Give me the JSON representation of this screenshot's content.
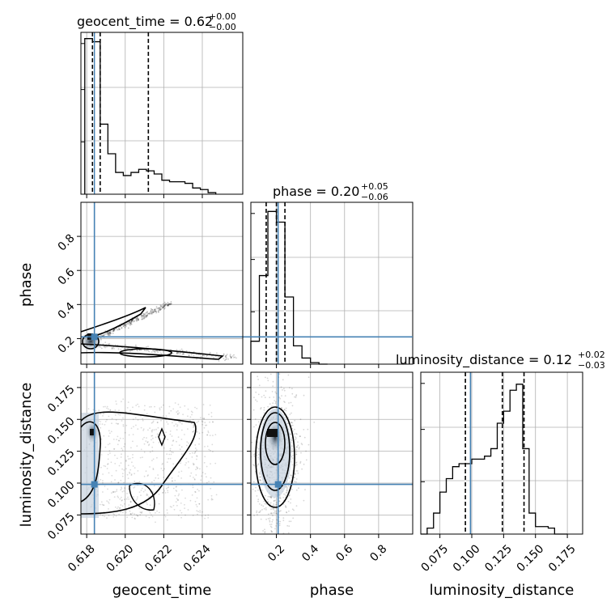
{
  "chart_data": {
    "type": "corner",
    "colors": {
      "truth": "#4682b4",
      "hist": "#000000",
      "grid": "#b0b0b0",
      "scatter": "#000000",
      "density": "#4a6a8a"
    },
    "parameters": [
      {
        "name": "geocent_time",
        "axis_label": "geocent_time",
        "range": [
          0.6177,
          0.6261
        ],
        "ticks": [
          0.618,
          0.62,
          0.622,
          0.624
        ],
        "tick_labels": [
          "0.618",
          "0.620",
          "0.622",
          "0.624"
        ],
        "truth": 0.6184,
        "title": {
          "lhs": "geocent_time = 0.62",
          "sup": "+0.00",
          "sub": "−0.00"
        },
        "quantiles": [
          0.6183,
          0.6187,
          0.6212
        ],
        "hist": {
          "edges": [
            0.6179,
            0.6183,
            0.6187,
            0.6191,
            0.6195,
            0.6199,
            0.6203,
            0.6207,
            0.6211,
            0.6215,
            0.6219,
            0.6223,
            0.6227,
            0.6231,
            0.6235,
            0.6239,
            0.6243,
            0.6247
          ],
          "counts": [
            1.0,
            0.98,
            0.45,
            0.26,
            0.14,
            0.12,
            0.14,
            0.16,
            0.15,
            0.13,
            0.09,
            0.08,
            0.08,
            0.07,
            0.04,
            0.03,
            0.01
          ],
          "ymax": 1.04
        }
      },
      {
        "name": "phase",
        "axis_label": "phase",
        "range": [
          0.05,
          1.0
        ],
        "ticks": [
          0.2,
          0.4,
          0.6,
          0.8
        ],
        "tick_labels": [
          "0.2",
          "0.4",
          "0.6",
          "0.8"
        ],
        "truth": 0.21,
        "title": {
          "lhs": "phase = 0.20",
          "sup": "+0.05",
          "sub": "−0.06"
        },
        "quantiles": [
          0.14,
          0.2,
          0.25
        ],
        "hist": {
          "edges": [
            0.05,
            0.1,
            0.15,
            0.2,
            0.25,
            0.3,
            0.35,
            0.4,
            0.45,
            0.5
          ],
          "counts": [
            0.15,
            0.58,
            1.0,
            0.93,
            0.44,
            0.12,
            0.04,
            0.01,
            0.0
          ],
          "ymax": 1.06
        }
      },
      {
        "name": "luminosity_distance",
        "axis_label": "luminosity_distance",
        "range": [
          0.06,
          0.187
        ],
        "ticks": [
          0.075,
          0.1,
          0.125,
          0.15,
          0.175
        ],
        "tick_labels": [
          "0.075",
          "0.100",
          "0.125",
          "0.150",
          "0.175"
        ],
        "truth": 0.099,
        "title": {
          "lhs": "luminosity_distance = 0.12",
          "sup": "+0.02",
          "sub": "−0.03"
        },
        "quantiles": [
          0.095,
          0.124,
          0.141
        ],
        "hist": {
          "edges": [
            0.06,
            0.065,
            0.07,
            0.075,
            0.08,
            0.085,
            0.09,
            0.095,
            0.1,
            0.105,
            0.11,
            0.115,
            0.12,
            0.125,
            0.13,
            0.135,
            0.14,
            0.145,
            0.15,
            0.155,
            0.16,
            0.165,
            0.17,
            0.175
          ],
          "counts": [
            0.0,
            0.04,
            0.14,
            0.28,
            0.37,
            0.45,
            0.47,
            0.47,
            0.5,
            0.5,
            0.52,
            0.57,
            0.74,
            0.82,
            0.96,
            1.0,
            0.57,
            0.14,
            0.05,
            0.05,
            0.04,
            0.0,
            0.0
          ],
          "ymax": 1.08
        }
      }
    ],
    "pairs": [
      {
        "x": "geocent_time",
        "y": "phase"
      },
      {
        "x": "geocent_time",
        "y": "luminosity_distance"
      },
      {
        "x": "phase",
        "y": "luminosity_distance"
      }
    ],
    "grid": true
  }
}
